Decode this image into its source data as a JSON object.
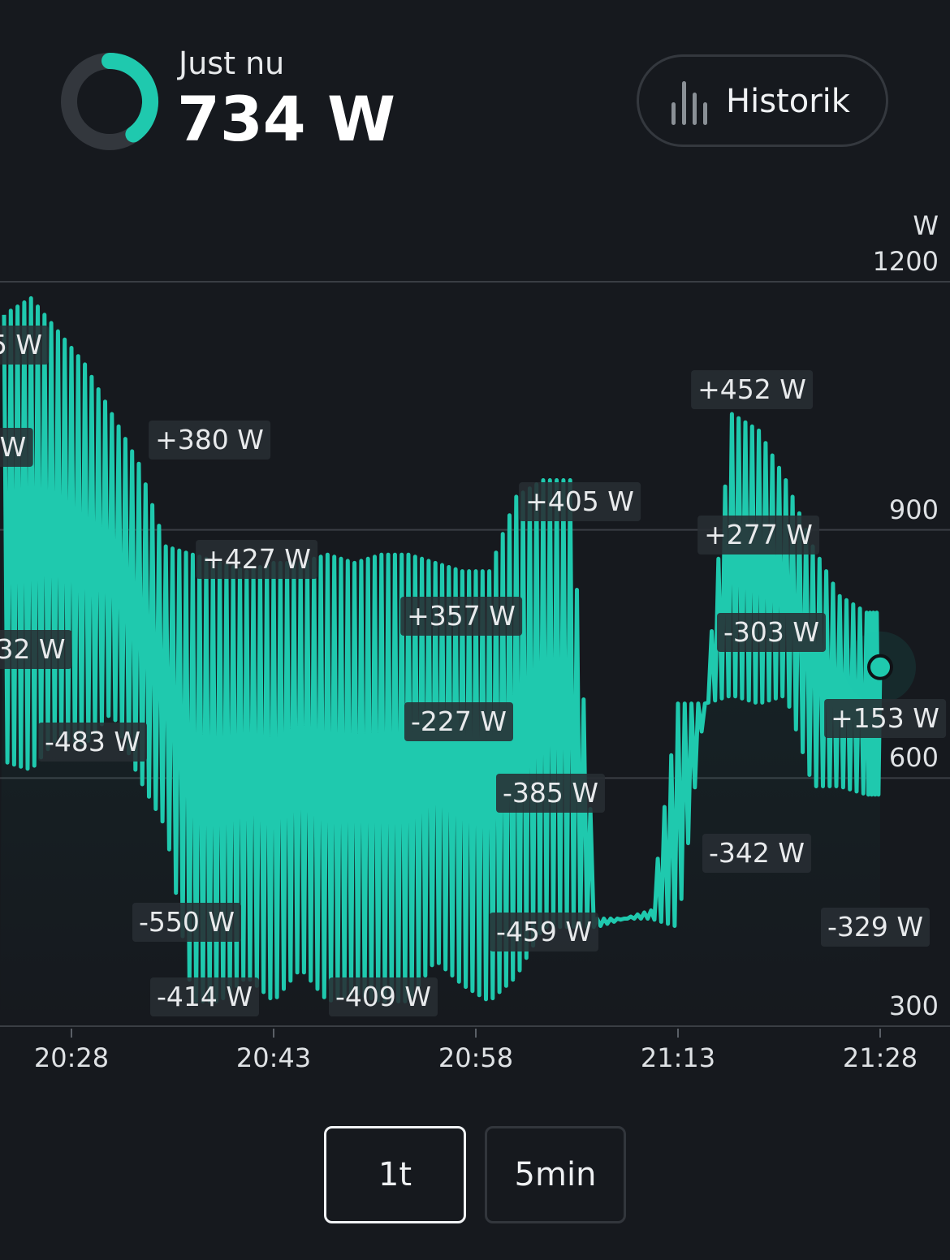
{
  "header": {
    "now_label": "Just nu",
    "now_value": "734 W",
    "gauge_fraction": 0.4,
    "history_label": "Historik"
  },
  "colors": {
    "background": "#16191e",
    "accent": "#1fc9ae",
    "grid": "#3a3e44",
    "gauge_track": "#33373d"
  },
  "chart_data": {
    "type": "line",
    "ylabel": "W",
    "ylim": [
      300,
      1200
    ],
    "y_ticks": [
      "1200",
      "900",
      "600",
      "300"
    ],
    "x_ticks": [
      "20:28",
      "20:43",
      "20:58",
      "21:13",
      "21:28"
    ],
    "series": [
      {
        "x": [
          "20:23",
          "20:25",
          "20:27",
          "20:29",
          "20:31",
          "20:33",
          "20:35",
          "20:37",
          "20:39",
          "20:41",
          "20:43",
          "20:45",
          "20:47",
          "20:49",
          "20:51",
          "20:53",
          "20:55",
          "20:57",
          "20:59",
          "21:01",
          "21:03",
          "21:05",
          "21:07",
          "21:09",
          "21:11",
          "21:13",
          "21:15",
          "21:17",
          "21:19",
          "21:21",
          "21:23",
          "21:25",
          "21:27",
          "21:28"
        ],
        "min": [
          620,
          610,
          650,
          640,
          680,
          600,
          540,
          330,
          330,
          360,
          330,
          370,
          330,
          340,
          330,
          330,
          380,
          350,
          330,
          360,
          420,
          420,
          420,
          430,
          430,
          420,
          690,
          700,
          690,
          700,
          590,
          590,
          580,
          580
        ],
        "max": [
          1160,
          1180,
          1140,
          1100,
          1040,
          980,
          880,
          870,
          860,
          850,
          860,
          860,
          870,
          860,
          870,
          870,
          860,
          850,
          850,
          940,
          960,
          960,
          430,
          430,
          440,
          690,
          690,
          1040,
          1020,
          960,
          880,
          820,
          800,
          800
        ]
      }
    ],
    "current_point": {
      "time": "21:28",
      "value": 734
    },
    "annotations": [
      "5 W",
      "W",
      "+380 W",
      "32 W",
      "-483 W",
      "+427 W",
      "-550 W",
      "-414 W",
      "-409 W",
      "+357 W",
      "-227 W",
      "+405 W",
      "-385 W",
      "-459 W",
      "+452 W",
      "+277 W",
      "-303 W",
      "-342 W",
      "+153 W",
      "-329 W"
    ]
  },
  "range_buttons": [
    "1t",
    "5min"
  ]
}
